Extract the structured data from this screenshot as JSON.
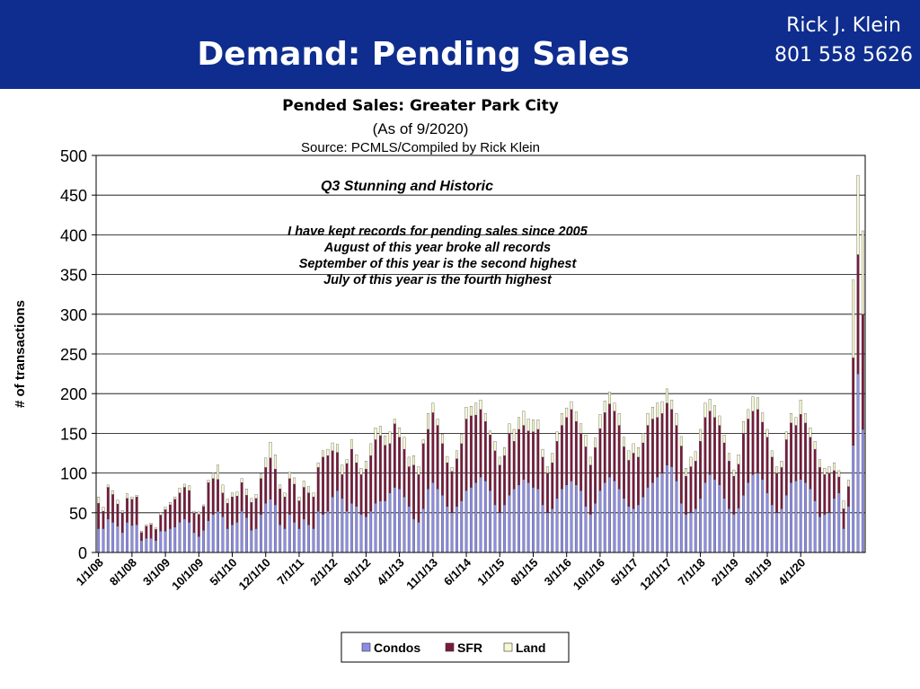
{
  "header": {
    "title": "Demand: Pending Sales",
    "contact_name": "Rick J. Klein",
    "contact_phone": "801 558 5626",
    "background": "#0f2d8e"
  },
  "chart_data": {
    "type": "bar",
    "stacked": true,
    "title": "Pended Sales: Greater Park City",
    "subtitle": "(As of 9/2020)",
    "source": "Source: PCMLS/Compiled by Rick Klein",
    "xlabel": "",
    "ylabel": "# of transactions",
    "ylim": [
      0,
      500
    ],
    "yticks": [
      0,
      50,
      100,
      150,
      200,
      250,
      300,
      350,
      400,
      450,
      500
    ],
    "grid": true,
    "legend_position": "bottom",
    "x_start": "2008-01",
    "x_tick_labels": [
      "1/1/08",
      "8/1/08",
      "3/1/09",
      "10/1/09",
      "5/1/10",
      "12/1/10",
      "7/1/11",
      "2/1/12",
      "9/1/12",
      "4/1/13",
      "11/1/13",
      "6/1/14",
      "1/1/15",
      "8/1/15",
      "3/1/16",
      "10/1/16",
      "5/1/17",
      "12/1/17",
      "7/1/18",
      "2/1/19",
      "9/1/19",
      "4/1/20"
    ],
    "series": [
      {
        "name": "Condos",
        "color": "#8c8ce6",
        "values": [
          30,
          30,
          42,
          38,
          33,
          25,
          38,
          34,
          35,
          15,
          18,
          18,
          15,
          27,
          27,
          30,
          32,
          38,
          42,
          38,
          25,
          20,
          28,
          40,
          48,
          52,
          45,
          30,
          35,
          38,
          52,
          44,
          28,
          30,
          48,
          62,
          67,
          60,
          35,
          30,
          48,
          38,
          30,
          42,
          35,
          30,
          52,
          48,
          52,
          70,
          78,
          68,
          52,
          62,
          58,
          48,
          45,
          52,
          62,
          65,
          65,
          75,
          82,
          80,
          70,
          58,
          42,
          38,
          55,
          80,
          88,
          80,
          72,
          58,
          50,
          58,
          65,
          78,
          82,
          88,
          95,
          90,
          78,
          60,
          50,
          60,
          72,
          80,
          85,
          92,
          88,
          82,
          80,
          60,
          50,
          55,
          68,
          80,
          85,
          90,
          85,
          78,
          58,
          48,
          62,
          78,
          88,
          95,
          90,
          80,
          68,
          58,
          55,
          60,
          70,
          82,
          88,
          95,
          100,
          110,
          108,
          90,
          62,
          48,
          50,
          55,
          68,
          88,
          98,
          92,
          85,
          68,
          55,
          48,
          56,
          72,
          88,
          98,
          100,
          92,
          75,
          60,
          50,
          55,
          72,
          88,
          90,
          92,
          88,
          80,
          65,
          45,
          48,
          50,
          68,
          75,
          30,
          58,
          135,
          225,
          155
        ]
      },
      {
        "name": "SFR",
        "color": "#7a1a3c",
        "values": [
          32,
          22,
          40,
          35,
          28,
          25,
          30,
          33,
          35,
          10,
          15,
          17,
          14,
          20,
          27,
          30,
          35,
          37,
          40,
          40,
          25,
          28,
          30,
          48,
          45,
          40,
          30,
          32,
          35,
          33,
          36,
          28,
          35,
          38,
          45,
          45,
          52,
          45,
          45,
          40,
          45,
          48,
          35,
          40,
          40,
          40,
          55,
          72,
          70,
          58,
          48,
          30,
          60,
          68,
          55,
          50,
          60,
          70,
          80,
          82,
          70,
          62,
          80,
          65,
          60,
          50,
          68,
          60,
          82,
          75,
          88,
          80,
          65,
          55,
          52,
          60,
          72,
          90,
          90,
          85,
          85,
          75,
          70,
          68,
          60,
          62,
          78,
          60,
          70,
          68,
          65,
          70,
          75,
          60,
          50,
          58,
          72,
          80,
          85,
          90,
          80,
          72,
          75,
          62,
          70,
          78,
          88,
          92,
          88,
          80,
          65,
          58,
          70,
          60,
          68,
          78,
          80,
          75,
          75,
          78,
          72,
          70,
          72,
          48,
          58,
          60,
          72,
          82,
          80,
          78,
          75,
          70,
          60,
          48,
          55,
          78,
          80,
          80,
          80,
          72,
          70,
          60,
          50,
          52,
          70,
          75,
          70,
          82,
          75,
          65,
          65,
          62,
          50,
          50,
          35,
          20,
          25,
          25,
          110,
          150,
          145
        ]
      },
      {
        "name": "Land",
        "color": "#f8f8d0",
        "values": [
          8,
          5,
          3,
          5,
          5,
          3,
          6,
          3,
          2,
          2,
          2,
          2,
          2,
          3,
          3,
          3,
          3,
          6,
          4,
          6,
          2,
          3,
          2,
          3,
          7,
          18,
          10,
          5,
          5,
          5,
          5,
          8,
          5,
          5,
          6,
          12,
          20,
          18,
          5,
          5,
          8,
          8,
          5,
          8,
          8,
          5,
          6,
          8,
          8,
          10,
          10,
          12,
          5,
          12,
          10,
          8,
          10,
          15,
          15,
          12,
          12,
          15,
          6,
          12,
          15,
          12,
          12,
          10,
          5,
          20,
          12,
          8,
          12,
          8,
          5,
          10,
          12,
          15,
          12,
          15,
          12,
          10,
          5,
          12,
          10,
          10,
          12,
          15,
          15,
          18,
          15,
          15,
          12,
          10,
          8,
          12,
          12,
          15,
          12,
          10,
          12,
          12,
          15,
          10,
          12,
          18,
          15,
          15,
          10,
          15,
          12,
          12,
          12,
          12,
          12,
          15,
          15,
          18,
          15,
          18,
          12,
          15,
          12,
          10,
          12,
          12,
          15,
          18,
          15,
          15,
          12,
          10,
          10,
          8,
          12,
          15,
          12,
          18,
          15,
          12,
          10,
          8,
          8,
          8,
          10,
          12,
          10,
          18,
          12,
          12,
          10,
          10,
          8,
          8,
          10,
          8,
          10,
          8,
          98,
          100,
          105
        ]
      }
    ]
  },
  "annotations": {
    "headline": "Q3 Stunning and Historic",
    "lines": [
      "I have kept records for pending sales since 2005",
      "August of this year broke all records",
      "September of this year is the second highest",
      "July of this year is the fourth highest"
    ]
  }
}
